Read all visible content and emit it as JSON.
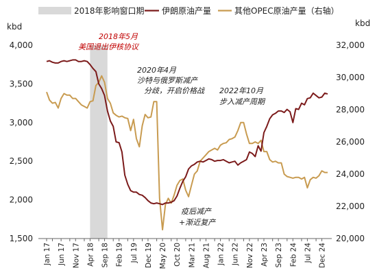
{
  "chart_data": {
    "type": "line",
    "legend": [
      {
        "name": "2018年影响窗口期",
        "kind": "shade",
        "color": "#d9d9d9"
      },
      {
        "name": "伊朗原油产量",
        "kind": "line",
        "color": "#7b1a1a"
      },
      {
        "name": "其他OPEC原油产量（右轴）",
        "kind": "line",
        "color": "#c89b50"
      }
    ],
    "left_unit": "kbd",
    "right_unit": "kbd",
    "ylim_left": [
      1500,
      4000
    ],
    "ylim_right": [
      20000,
      32000
    ],
    "yticks_left": [
      "1,500",
      "2,000",
      "2,500",
      "3,000",
      "3,500",
      "4,000"
    ],
    "yticks_right": [
      "20,000",
      "22,000",
      "24,000",
      "26,000",
      "28,000",
      "30,000",
      "32,000"
    ],
    "xticks": [
      "Jan 17",
      "Mar 17",
      "Jun 17",
      "Sep 17",
      "Nov 17",
      "Feb 18",
      "Apr 18",
      "Jul 18",
      "Sep 18",
      "Dec 18",
      "Feb 19",
      "May 19",
      "Jul 19",
      "Oct 19",
      "Dec 19",
      "Mar 20",
      "May 20",
      "Aug 20",
      "Oct 20",
      "Jan 21",
      "Mar 21",
      "Jun 21",
      "Aug 21",
      "Nov 21",
      "Jan 22",
      "Apr 22",
      "Jun 22",
      "Sep 22",
      "Nov 22",
      "Feb 23",
      "Apr 23",
      "Jul 23",
      "Sep 23",
      "Dec 23",
      "Feb 24",
      "May 24",
      "Jul 24",
      "Oct 24",
      "Dec 24"
    ],
    "xtick_labels": [
      "Jan 17",
      "Jun 17",
      "Nov 17",
      "Apr 18",
      "Sep 18",
      "Feb 19",
      "Jul 19",
      "Dec 19",
      "May 20",
      "Oct 20",
      "Mar 21",
      "Aug 21",
      "Jan 22",
      "Jun 22",
      "Nov 22",
      "Apr 23",
      "Sep 23",
      "Feb 24",
      "Jul 24",
      "Dec 24"
    ],
    "shade": {
      "from": "Apr 18",
      "to": "Oct 18"
    },
    "series": [
      {
        "name": "伊朗原油产量",
        "axis": "left",
        "x": [
          "Jan 17",
          "Feb 17",
          "Mar 17",
          "Apr 17",
          "May 17",
          "Jun 17",
          "Jul 17",
          "Aug 17",
          "Sep 17",
          "Oct 17",
          "Nov 17",
          "Dec 17",
          "Jan 18",
          "Feb 18",
          "Mar 18",
          "Apr 18",
          "May 18",
          "Jun 18",
          "Jul 18",
          "Aug 18",
          "Sep 18",
          "Oct 18",
          "Nov 18",
          "Dec 18",
          "Jan 19",
          "Feb 19",
          "Mar 19",
          "Apr 19",
          "May 19",
          "Jun 19",
          "Jul 19",
          "Aug 19",
          "Sep 19",
          "Oct 19",
          "Nov 19",
          "Dec 19",
          "Jan 20",
          "Feb 20",
          "Mar 20",
          "Apr 20",
          "May 20",
          "Jun 20",
          "Jul 20",
          "Aug 20",
          "Sep 20",
          "Oct 20",
          "Nov 20",
          "Dec 20",
          "Jan 21",
          "Feb 21",
          "Mar 21",
          "Apr 21",
          "May 21",
          "Jun 21",
          "Jul 21",
          "Aug 21",
          "Sep 21",
          "Oct 21",
          "Nov 21",
          "Dec 21",
          "Jan 22",
          "Feb 22",
          "Mar 22",
          "Apr 22",
          "May 22",
          "Jun 22",
          "Jul 22",
          "Aug 22",
          "Sep 22",
          "Oct 22",
          "Nov 22",
          "Dec 22",
          "Jan 23",
          "Feb 23",
          "Mar 23",
          "Apr 23",
          "May 23",
          "Jun 23",
          "Jul 23",
          "Aug 23",
          "Sep 23",
          "Oct 23",
          "Nov 23",
          "Dec 23",
          "Jan 24",
          "Feb 24",
          "Mar 24",
          "Apr 24",
          "May 24",
          "Jun 24",
          "Jul 24",
          "Aug 24",
          "Sep 24",
          "Oct 24",
          "Nov 24",
          "Dec 24",
          "Jan 25",
          "Feb 25"
        ],
        "values": [
          3790,
          3800,
          3780,
          3770,
          3770,
          3790,
          3800,
          3790,
          3800,
          3810,
          3810,
          3790,
          3790,
          3800,
          3790,
          3750,
          3700,
          3660,
          3500,
          3440,
          3350,
          3150,
          3020,
          2950,
          2750,
          2740,
          2620,
          2320,
          2200,
          2120,
          2100,
          2100,
          2070,
          2060,
          2030,
          1990,
          1960,
          1950,
          1960,
          1950,
          1940,
          1960,
          1960,
          1970,
          1990,
          2050,
          2150,
          2240,
          2300,
          2400,
          2440,
          2460,
          2490,
          2500,
          2490,
          2510,
          2530,
          2520,
          2500,
          2510,
          2510,
          2520,
          2500,
          2480,
          2490,
          2500,
          2450,
          2480,
          2500,
          2520,
          2620,
          2600,
          2560,
          2700,
          2630,
          2870,
          2950,
          3050,
          3100,
          3120,
          3150,
          3150,
          3130,
          3170,
          3140,
          3000,
          3180,
          3170,
          3250,
          3230,
          3310,
          3320,
          3380,
          3350,
          3320,
          3330,
          3380,
          3370
        ]
      },
      {
        "name": "其他OPEC原油产量（右轴）",
        "axis": "right",
        "x": [
          "Jan 17",
          "Feb 17",
          "Mar 17",
          "Apr 17",
          "May 17",
          "Jun 17",
          "Jul 17",
          "Aug 17",
          "Sep 17",
          "Oct 17",
          "Nov 17",
          "Dec 17",
          "Jan 18",
          "Feb 18",
          "Mar 18",
          "Apr 18",
          "May 18",
          "Jun 18",
          "Jul 18",
          "Aug 18",
          "Sep 18",
          "Oct 18",
          "Nov 18",
          "Dec 18",
          "Jan 19",
          "Feb 19",
          "Mar 19",
          "Apr 19",
          "May 19",
          "Jun 19",
          "Jul 19",
          "Aug 19",
          "Sep 19",
          "Oct 19",
          "Nov 19",
          "Dec 19",
          "Jan 20",
          "Feb 20",
          "Mar 20",
          "Apr 20",
          "May 20",
          "Jun 20",
          "Jul 20",
          "Aug 20",
          "Sep 20",
          "Oct 20",
          "Nov 20",
          "Dec 20",
          "Jan 21",
          "Feb 21",
          "Mar 21",
          "Apr 21",
          "May 21",
          "Jun 21",
          "Jul 21",
          "Aug 21",
          "Sep 21",
          "Oct 21",
          "Nov 21",
          "Dec 21",
          "Jan 22",
          "Feb 22",
          "Mar 22",
          "Apr 22",
          "May 22",
          "Jun 22",
          "Jul 22",
          "Aug 22",
          "Sep 22",
          "Oct 22",
          "Nov 22",
          "Dec 22",
          "Jan 23",
          "Feb 23",
          "Mar 23",
          "Apr 23",
          "May 23",
          "Jun 23",
          "Jul 23",
          "Aug 23",
          "Sep 23",
          "Oct 23",
          "Nov 23",
          "Dec 23",
          "Jan 24",
          "Feb 24",
          "Mar 24",
          "Apr 24",
          "May 24",
          "Jun 24",
          "Jul 24",
          "Aug 24",
          "Sep 24",
          "Oct 24",
          "Nov 24",
          "Dec 24",
          "Jan 25",
          "Feb 25"
        ],
        "values": [
          29100,
          28600,
          28400,
          28450,
          28100,
          28700,
          29000,
          28900,
          28900,
          28700,
          28700,
          28500,
          28300,
          28200,
          28100,
          28500,
          28550,
          29500,
          29700,
          30100,
          29700,
          28700,
          28400,
          27800,
          27650,
          27550,
          27600,
          27500,
          27450,
          26700,
          27400,
          26200,
          25700,
          27000,
          27700,
          27500,
          27550,
          28500,
          28500,
          22500,
          20550,
          22100,
          22500,
          22200,
          22700,
          23300,
          23600,
          23700,
          23000,
          22600,
          23300,
          24000,
          24200,
          24800,
          25000,
          25200,
          25400,
          25500,
          25600,
          25500,
          25800,
          25900,
          25950,
          26150,
          26200,
          26300,
          26700,
          27200,
          27200,
          26500,
          25900,
          25900,
          26000,
          25900,
          26100,
          25400,
          25400,
          24900,
          24750,
          24800,
          24700,
          24700,
          24000,
          23850,
          23800,
          23750,
          23800,
          23800,
          23700,
          23800,
          23150,
          23650,
          23800,
          23750,
          23900,
          24200,
          24100,
          24100
        ]
      }
    ],
    "annotations": [
      {
        "lines": [
          "2018年5月",
          "美国退出伊核协议"
        ],
        "color": "red"
      },
      {
        "lines": [
          "2020年4月",
          "沙特与俄罗斯减产",
          "分歧，开启价格战"
        ],
        "color": "black"
      },
      {
        "lines": [
          "2022年10月",
          "步入减产周期"
        ],
        "color": "black"
      },
      {
        "lines": [
          "疫后减产",
          "+渐近复产"
        ],
        "color": "black"
      }
    ]
  }
}
